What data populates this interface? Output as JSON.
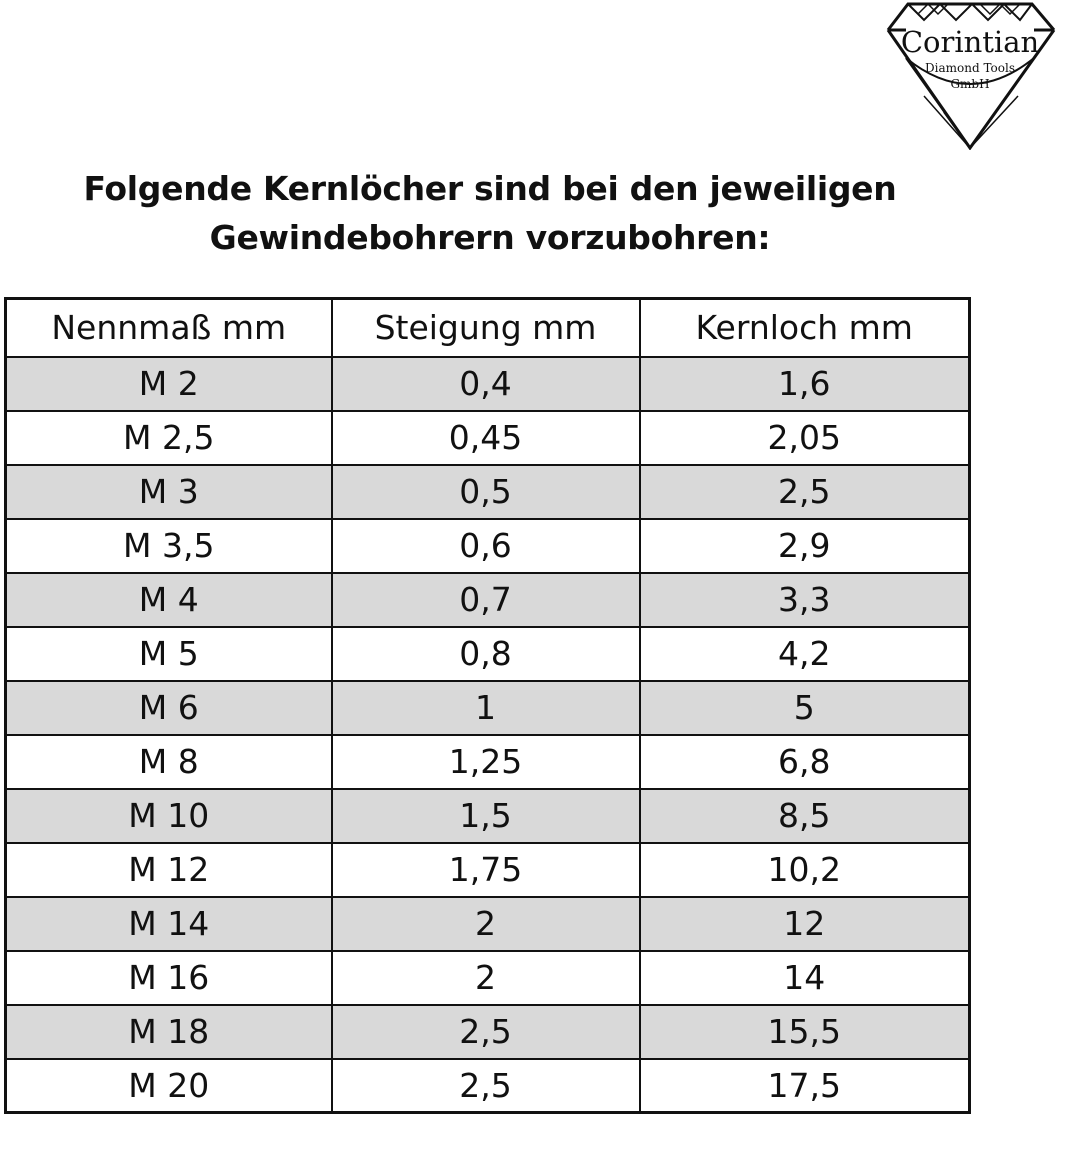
{
  "logo": {
    "name": "Corintian",
    "line1": "Diamond Tools",
    "line2": "GmbH"
  },
  "heading": {
    "line1": "Folgende Kernlöcher sind bei den jeweiligen",
    "line2": "Gewindebohrern vorzubohren:"
  },
  "table": {
    "headers": [
      "Nennmaß mm",
      "Steigung mm",
      "Kernloch mm"
    ],
    "rows": [
      [
        "M 2",
        "0,4",
        "1,6"
      ],
      [
        "M 2,5",
        "0,45",
        "2,05"
      ],
      [
        "M 3",
        "0,5",
        "2,5"
      ],
      [
        "M 3,5",
        "0,6",
        "2,9"
      ],
      [
        "M 4",
        "0,7",
        "3,3"
      ],
      [
        "M 5",
        "0,8",
        "4,2"
      ],
      [
        "M 6",
        "1",
        "5"
      ],
      [
        "M 8",
        "1,25",
        "6,8"
      ],
      [
        "M 10",
        "1,5",
        "8,5"
      ],
      [
        "M 12",
        "1,75",
        "10,2"
      ],
      [
        "M 14",
        "2",
        "12"
      ],
      [
        "M 16",
        "2",
        "14"
      ],
      [
        "M 18",
        "2,5",
        "15,5"
      ],
      [
        "M 20",
        "2,5",
        "17,5"
      ]
    ]
  },
  "colors": {
    "shaded_row": "#d9d9d9",
    "border": "#111111",
    "background": "#ffffff"
  }
}
